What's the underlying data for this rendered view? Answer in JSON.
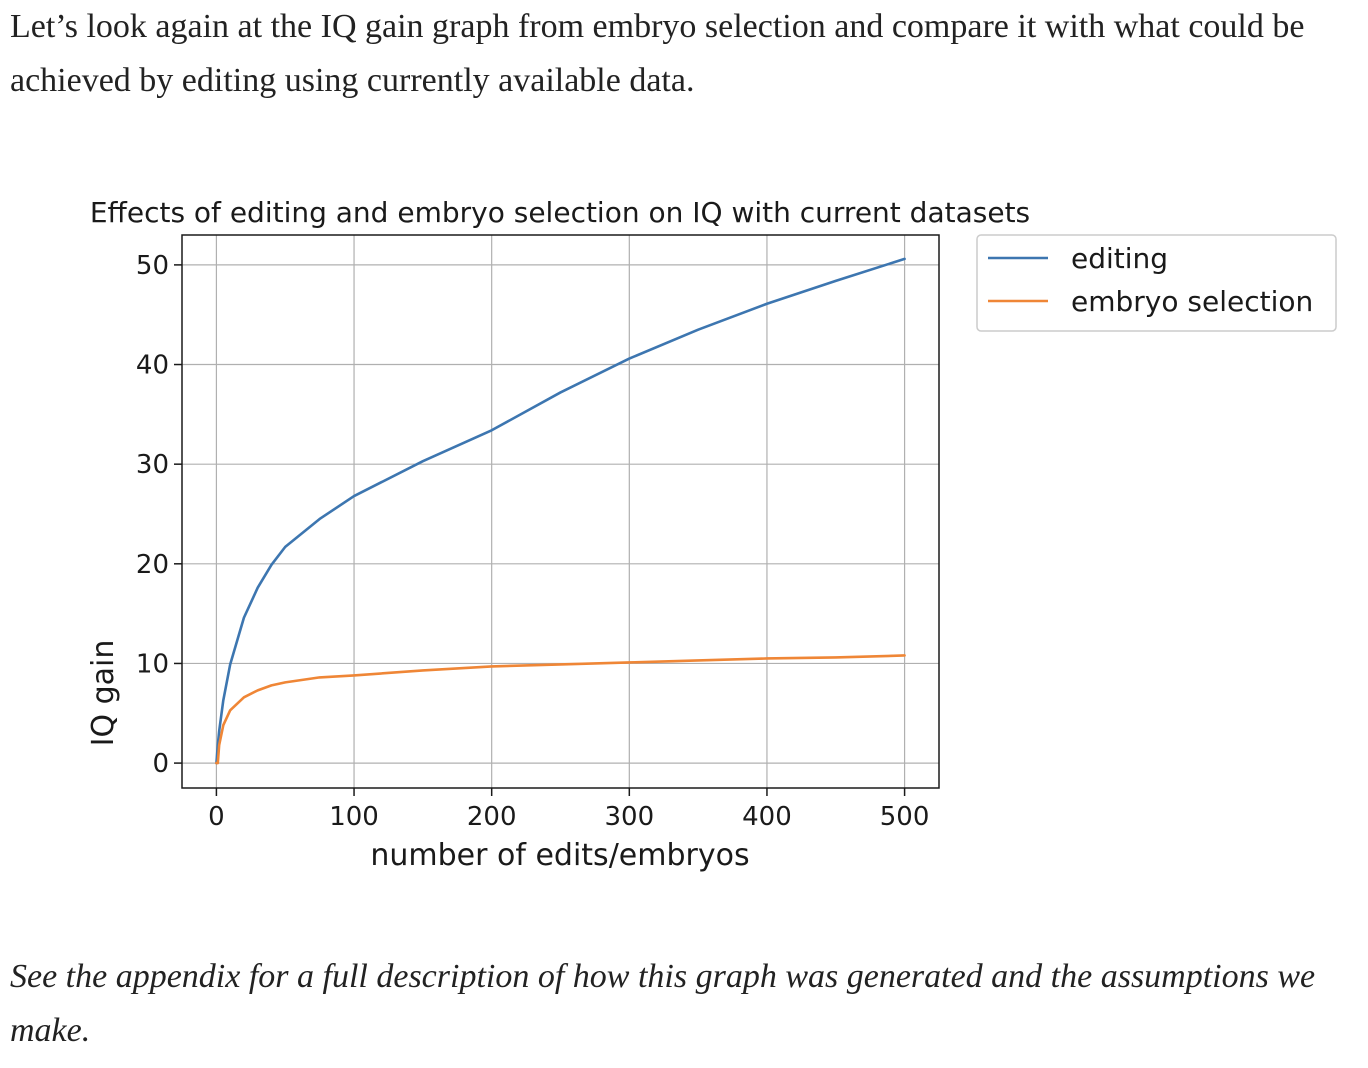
{
  "intro_text": "Let’s look again at the IQ gain graph from embryo selection and compare it with what could be achieved by editing using currently available data.",
  "caption_text": "See the appendix for a full description of how this graph was generated and the assumptions we make.",
  "colors": {
    "editing": "#3d76b0",
    "embryo_selection": "#ef8636",
    "grid": "#b0b0b0",
    "text": "#222222"
  },
  "chart_data": {
    "type": "line",
    "title": "Effects of editing and embryo selection on IQ with current datasets",
    "xlabel": "number of edits/embryos",
    "ylabel": "IQ gain",
    "xlim": [
      -25,
      525
    ],
    "ylim": [
      -2.5,
      53
    ],
    "xticks": [
      0,
      100,
      200,
      300,
      400,
      500
    ],
    "yticks": [
      0,
      10,
      20,
      30,
      40,
      50
    ],
    "grid": true,
    "legend_position": "outside-right-top",
    "x": [
      1,
      2,
      5,
      10,
      20,
      30,
      40,
      50,
      75,
      100,
      150,
      200,
      250,
      300,
      350,
      400,
      450,
      500
    ],
    "series": [
      {
        "name": "editing",
        "color": "#3d76b0",
        "values": [
          1.8,
          3.2,
          6.3,
          9.9,
          14.6,
          17.6,
          19.9,
          21.7,
          24.5,
          26.8,
          30.3,
          33.4,
          37.2,
          40.6,
          43.5,
          46.1,
          48.4,
          50.6
        ]
      },
      {
        "name": "embryo selection",
        "color": "#ef8636",
        "values": [
          0.0,
          1.8,
          3.8,
          5.3,
          6.6,
          7.3,
          7.8,
          8.1,
          8.6,
          8.8,
          9.3,
          9.7,
          9.9,
          10.1,
          10.3,
          10.5,
          10.6,
          10.8
        ]
      }
    ]
  }
}
